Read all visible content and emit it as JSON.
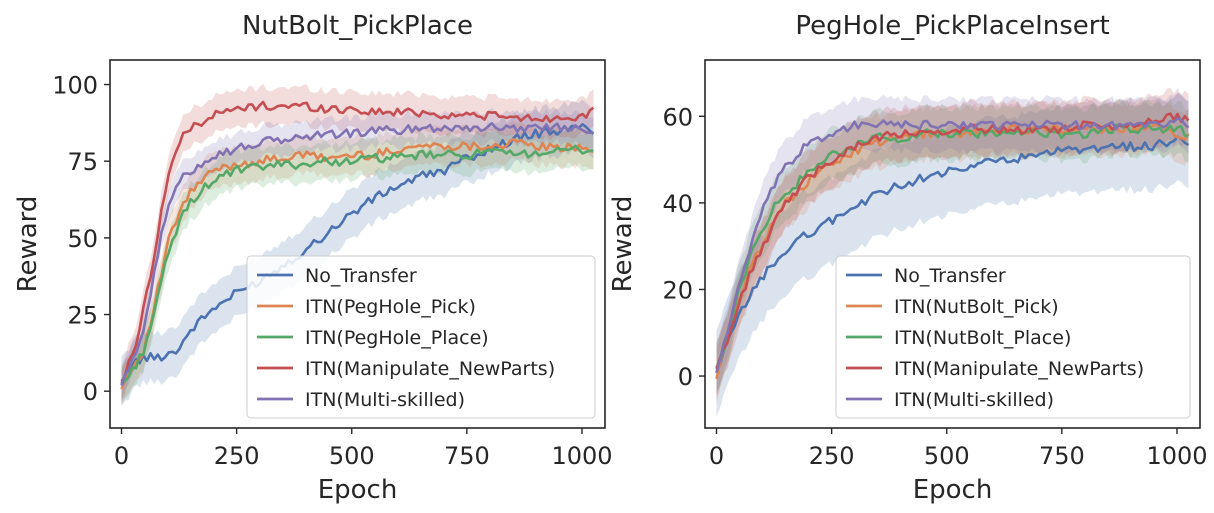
{
  "chart_data": [
    {
      "type": "line",
      "title": "NutBolt_PickPlace",
      "xlabel": "Epoch",
      "ylabel": "Reward",
      "xlim": [
        -25,
        1050
      ],
      "ylim": [
        -12,
        108
      ],
      "xticks": [
        0,
        250,
        500,
        750,
        1000
      ],
      "xtick_labels": [
        "0",
        "250",
        "500",
        "750",
        "1000"
      ],
      "yticks": [
        0,
        25,
        50,
        75,
        100
      ],
      "ytick_labels": [
        "0",
        "25",
        "50",
        "75",
        "100"
      ],
      "legend_position": "lower-right",
      "grid": false,
      "x": [
        0,
        25,
        50,
        75,
        100,
        125,
        150,
        200,
        250,
        300,
        350,
        400,
        450,
        500,
        550,
        600,
        650,
        700,
        750,
        800,
        850,
        900,
        950,
        1000,
        1025
      ],
      "series": [
        {
          "name": "No_Transfer",
          "color": "#4c72b0",
          "values": [
            2,
            9,
            11,
            11,
            12,
            14,
            20,
            27,
            32,
            36,
            41,
            46,
            52,
            58,
            63,
            67,
            70,
            72,
            76,
            79,
            82,
            84,
            85,
            86,
            85
          ],
          "band": 8
        },
        {
          "name": "ITN(PegHole_Pick)",
          "color": "#dd8452",
          "values": [
            2,
            8,
            14,
            30,
            48,
            58,
            65,
            72,
            74,
            75,
            76,
            77,
            76,
            77,
            77,
            79,
            80,
            80,
            80,
            80,
            81,
            80,
            79,
            80,
            79
          ],
          "band": 6
        },
        {
          "name": "ITN(PegHole_Place)",
          "color": "#55a868",
          "values": [
            2,
            7,
            14,
            28,
            44,
            55,
            62,
            69,
            72,
            73,
            74,
            74,
            75,
            75,
            76,
            76,
            77,
            77,
            77,
            78,
            77,
            78,
            78,
            79,
            78
          ],
          "band": 6
        },
        {
          "name": "ITN(Manipulate_NewParts)",
          "color": "#c44e52",
          "values": [
            3,
            12,
            28,
            48,
            70,
            81,
            86,
            90,
            92,
            93,
            93,
            93,
            92,
            92,
            91,
            91,
            91,
            90,
            90,
            90,
            89,
            89,
            89,
            90,
            91
          ],
          "band": 6
        },
        {
          "name": "ITN(Multi-skilled)",
          "color": "#8172b2",
          "values": [
            2,
            10,
            22,
            42,
            60,
            68,
            72,
            77,
            79,
            81,
            82,
            83,
            84,
            84,
            85,
            85,
            86,
            86,
            86,
            86,
            86,
            86,
            86,
            86,
            85
          ],
          "band": 5
        }
      ]
    },
    {
      "type": "line",
      "title": "PegHole_PickPlaceInsert",
      "xlabel": "Epoch",
      "ylabel": "Reward",
      "xlim": [
        -25,
        1050
      ],
      "ylim": [
        -12,
        73
      ],
      "xticks": [
        0,
        250,
        500,
        750,
        1000
      ],
      "xtick_labels": [
        "0",
        "250",
        "500",
        "750",
        "1000"
      ],
      "yticks": [
        0,
        20,
        40,
        60
      ],
      "ytick_labels": [
        "0",
        "20",
        "40",
        "60"
      ],
      "legend_position": "lower-right",
      "grid": false,
      "x": [
        0,
        25,
        50,
        75,
        100,
        125,
        150,
        200,
        250,
        300,
        350,
        400,
        450,
        500,
        550,
        600,
        650,
        700,
        750,
        800,
        850,
        900,
        950,
        1000,
        1025
      ],
      "series": [
        {
          "name": "No_Transfer",
          "color": "#4c72b0",
          "values": [
            0,
            8,
            14,
            19,
            23,
            26,
            29,
            33,
            36,
            39,
            42,
            44,
            46,
            47,
            48,
            50,
            50,
            51,
            52,
            52,
            53,
            53,
            53,
            55,
            53
          ],
          "band": 10
        },
        {
          "name": "ITN(NutBolt_Pick)",
          "color": "#dd8452",
          "values": [
            0,
            9,
            18,
            25,
            31,
            36,
            40,
            45,
            49,
            52,
            54,
            55,
            56,
            56,
            56,
            57,
            57,
            57,
            57,
            57,
            57,
            57,
            58,
            56,
            55
          ],
          "band": 6
        },
        {
          "name": "ITN(NutBolt_Place)",
          "color": "#55a868",
          "values": [
            1,
            10,
            20,
            28,
            34,
            39,
            42,
            47,
            51,
            53,
            55,
            55,
            56,
            56,
            56,
            56,
            56,
            56,
            56,
            56,
            57,
            57,
            57,
            57,
            56
          ],
          "band": 6
        },
        {
          "name": "ITN(Manipulate_NewParts)",
          "color": "#c44e52",
          "values": [
            1,
            9,
            17,
            24,
            30,
            35,
            40,
            46,
            50,
            53,
            55,
            56,
            56,
            56,
            57,
            57,
            57,
            57,
            57,
            58,
            58,
            58,
            59,
            60,
            59
          ],
          "band": 6
        },
        {
          "name": "ITN(Multi-skilled)",
          "color": "#8172b2",
          "values": [
            1,
            11,
            21,
            30,
            38,
            44,
            48,
            54,
            56,
            58,
            58,
            58,
            58,
            58,
            58,
            58,
            58,
            58,
            58,
            58,
            58,
            58,
            58,
            59,
            58
          ],
          "band": 6
        }
      ]
    }
  ]
}
